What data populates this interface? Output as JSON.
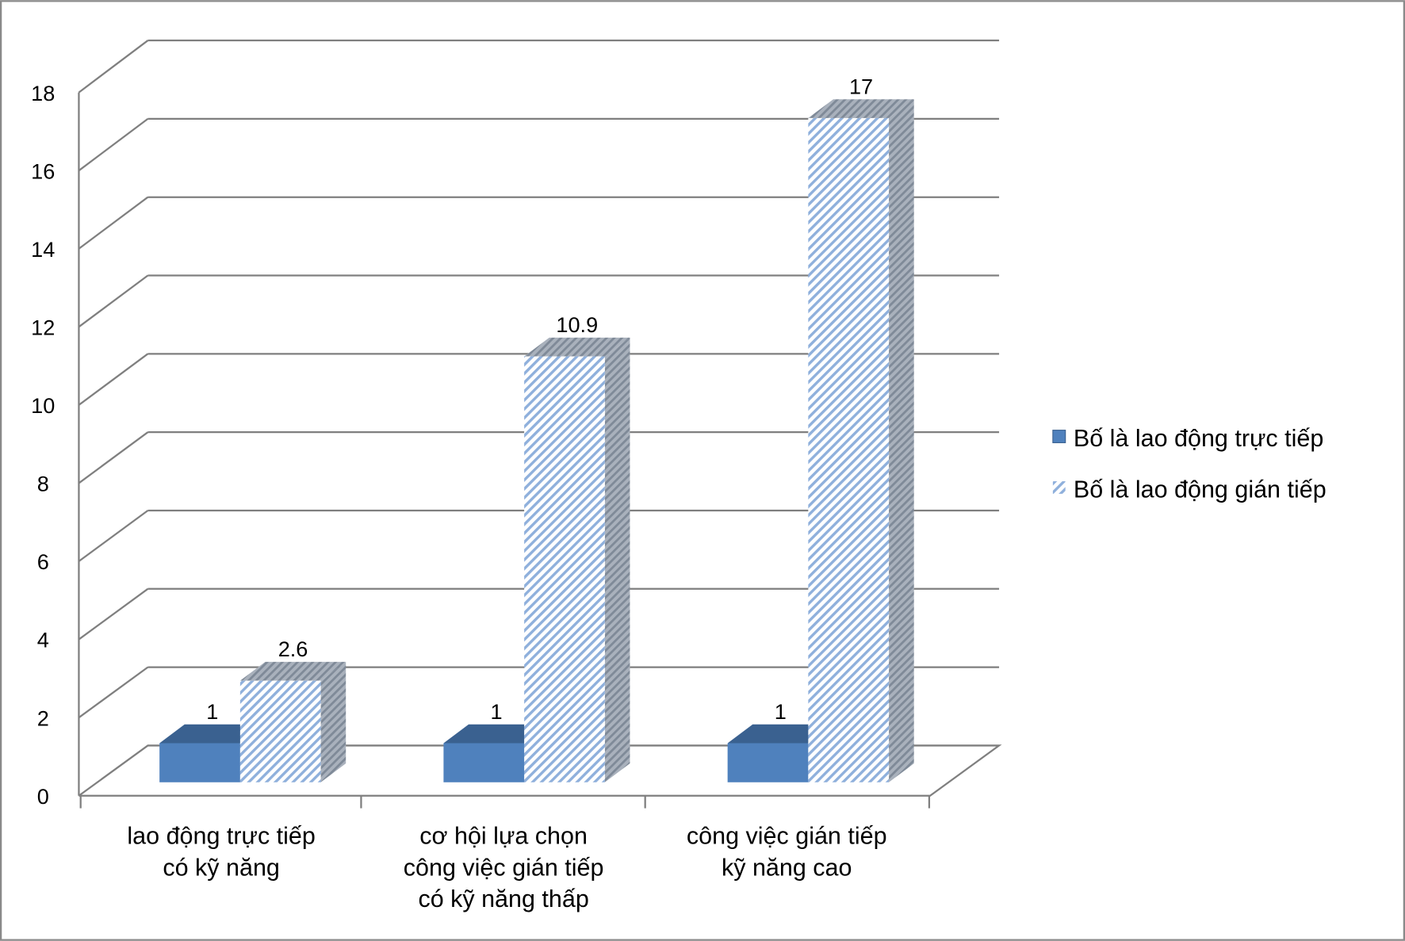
{
  "chart_data": {
    "type": "bar",
    "style": "3d-clustered-column",
    "categories": [
      [
        "lao động trực tiếp",
        "có kỹ năng"
      ],
      [
        "cơ hội lựa chọn",
        "công việc gián tiếp",
        "có kỹ năng thấp"
      ],
      [
        "công việc gián tiếp",
        "kỹ năng cao"
      ]
    ],
    "series": [
      {
        "name": "Bố là lao động trực tiếp",
        "values": [
          1,
          1,
          1
        ],
        "labels": [
          "1",
          "1",
          "1"
        ],
        "color": "#4f81bd",
        "fill": "solid"
      },
      {
        "name": "Bố là lao động gián tiếp",
        "values": [
          2.6,
          10.9,
          17
        ],
        "labels": [
          "2.6",
          "10.9",
          "17"
        ],
        "color": "#4f81bd",
        "fill": "diagonal-hatch"
      }
    ],
    "ylim": [
      0,
      18
    ],
    "yticks": [
      "0",
      "2",
      "4",
      "6",
      "8",
      "10",
      "12",
      "14",
      "16",
      "18"
    ],
    "grid": true,
    "legend": "right"
  }
}
